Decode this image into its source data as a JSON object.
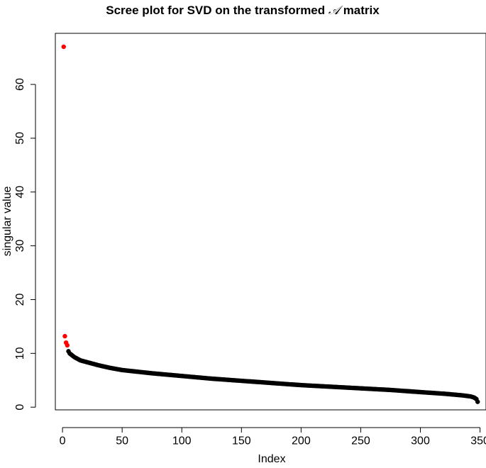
{
  "chart_data": {
    "type": "scatter",
    "title": {
      "prefix": "Scree plot for SVD on the transformed ",
      "symbol": "𝒜",
      "suffix": " matrix"
    },
    "xlabel": "Index",
    "ylabel": "singular value",
    "xlim": [
      -6,
      355
    ],
    "ylim": [
      -0.5,
      69.5
    ],
    "xticks": [
      0,
      50,
      100,
      150,
      200,
      250,
      300,
      350
    ],
    "yticks": [
      0,
      10,
      20,
      30,
      40,
      50,
      60
    ],
    "n_points": 348,
    "highlighted_points": [
      {
        "x": 1,
        "y": 67.0
      },
      {
        "x": 2,
        "y": 13.2
      },
      {
        "x": 3,
        "y": 12.0
      },
      {
        "x": 4,
        "y": 11.5
      }
    ],
    "curve_knots": [
      {
        "x": 5,
        "y": 10.4
      },
      {
        "x": 6,
        "y": 10.0
      },
      {
        "x": 10,
        "y": 9.3
      },
      {
        "x": 15,
        "y": 8.7
      },
      {
        "x": 20,
        "y": 8.4
      },
      {
        "x": 25,
        "y": 8.1
      },
      {
        "x": 30,
        "y": 7.8
      },
      {
        "x": 40,
        "y": 7.3
      },
      {
        "x": 50,
        "y": 6.9
      },
      {
        "x": 75,
        "y": 6.3
      },
      {
        "x": 100,
        "y": 5.8
      },
      {
        "x": 125,
        "y": 5.3
      },
      {
        "x": 150,
        "y": 4.9
      },
      {
        "x": 175,
        "y": 4.5
      },
      {
        "x": 200,
        "y": 4.1
      },
      {
        "x": 225,
        "y": 3.8
      },
      {
        "x": 250,
        "y": 3.5
      },
      {
        "x": 275,
        "y": 3.2
      },
      {
        "x": 300,
        "y": 2.8
      },
      {
        "x": 320,
        "y": 2.5
      },
      {
        "x": 335,
        "y": 2.2
      },
      {
        "x": 342,
        "y": 2.0
      },
      {
        "x": 345,
        "y": 1.8
      },
      {
        "x": 347,
        "y": 1.5
      },
      {
        "x": 348,
        "y": 1.0
      }
    ],
    "colors": {
      "highlight": "#ff0000",
      "points": "#000000"
    },
    "grid": false,
    "legend": "none"
  }
}
